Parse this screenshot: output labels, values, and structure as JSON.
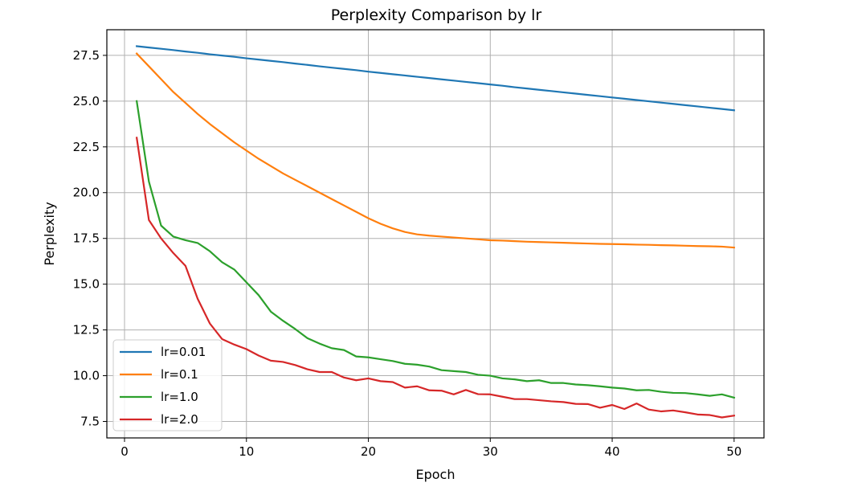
{
  "chart_data": {
    "type": "line",
    "title": "Perplexity Comparison by lr",
    "xlabel": "Epoch",
    "ylabel": "Perplexity",
    "xlim": [
      -1.45,
      52.45
    ],
    "ylim": [
      6.6,
      28.9
    ],
    "xticks": [
      0,
      10,
      20,
      30,
      40,
      50
    ],
    "yticks": [
      7.5,
      10.0,
      12.5,
      15.0,
      17.5,
      20.0,
      22.5,
      25.0,
      27.5
    ],
    "ytick_labels": [
      "7.5",
      "10.0",
      "12.5",
      "15.0",
      "17.5",
      "20.0",
      "22.5",
      "25.0",
      "27.5"
    ],
    "grid": true,
    "legend_position": "lower-left",
    "x": [
      1,
      2,
      3,
      4,
      5,
      6,
      7,
      8,
      9,
      10,
      11,
      12,
      13,
      14,
      15,
      16,
      17,
      18,
      19,
      20,
      21,
      22,
      23,
      24,
      25,
      26,
      27,
      28,
      29,
      30,
      31,
      32,
      33,
      34,
      35,
      36,
      37,
      38,
      39,
      40,
      41,
      42,
      43,
      44,
      45,
      46,
      47,
      48,
      49,
      50
    ],
    "series": [
      {
        "name": "lr=0.01",
        "color": "#1f77b4",
        "values": [
          28.0,
          27.93,
          27.86,
          27.79,
          27.71,
          27.64,
          27.56,
          27.49,
          27.42,
          27.34,
          27.27,
          27.2,
          27.13,
          27.05,
          26.98,
          26.9,
          26.83,
          26.76,
          26.69,
          26.61,
          26.54,
          26.47,
          26.4,
          26.33,
          26.26,
          26.19,
          26.12,
          26.05,
          25.98,
          25.91,
          25.84,
          25.76,
          25.69,
          25.62,
          25.55,
          25.48,
          25.41,
          25.34,
          25.27,
          25.2,
          25.13,
          25.06,
          24.99,
          24.92,
          24.85,
          24.78,
          24.71,
          24.64,
          24.57,
          24.5
        ]
      },
      {
        "name": "lr=0.1",
        "color": "#ff7f0e",
        "values": [
          27.6,
          26.9,
          26.2,
          25.5,
          24.9,
          24.3,
          23.75,
          23.25,
          22.75,
          22.3,
          21.85,
          21.45,
          21.05,
          20.7,
          20.35,
          20.0,
          19.65,
          19.3,
          18.95,
          18.6,
          18.3,
          18.05,
          17.85,
          17.72,
          17.65,
          17.6,
          17.55,
          17.5,
          17.45,
          17.4,
          17.38,
          17.35,
          17.32,
          17.3,
          17.28,
          17.26,
          17.24,
          17.22,
          17.2,
          17.19,
          17.18,
          17.16,
          17.15,
          17.13,
          17.12,
          17.1,
          17.08,
          17.07,
          17.05,
          17.0
        ]
      },
      {
        "name": "lr=1.0",
        "color": "#2ca02c",
        "values": [
          25.0,
          20.6,
          18.2,
          17.6,
          17.4,
          17.25,
          16.8,
          16.2,
          15.8,
          15.1,
          14.4,
          13.5,
          13.0,
          12.55,
          12.05,
          11.75,
          11.5,
          11.4,
          11.05,
          11.0,
          10.9,
          10.8,
          10.65,
          10.6,
          10.5,
          10.3,
          10.25,
          10.2,
          10.05,
          10.0,
          9.85,
          9.8,
          9.7,
          9.75,
          9.6,
          9.6,
          9.52,
          9.48,
          9.42,
          9.35,
          9.3,
          9.2,
          9.22,
          9.12,
          9.06,
          9.05,
          8.98,
          8.9,
          8.98,
          8.8
        ]
      },
      {
        "name": "lr=2.0",
        "color": "#d62728",
        "values": [
          23.0,
          18.5,
          17.5,
          16.7,
          16.0,
          14.2,
          12.85,
          12.0,
          11.7,
          11.45,
          11.1,
          10.82,
          10.75,
          10.58,
          10.35,
          10.2,
          10.2,
          9.9,
          9.75,
          9.85,
          9.7,
          9.65,
          9.35,
          9.42,
          9.2,
          9.18,
          8.98,
          9.22,
          8.99,
          8.98,
          8.85,
          8.72,
          8.72,
          8.66,
          8.6,
          8.56,
          8.46,
          8.45,
          8.25,
          8.4,
          8.18,
          8.48,
          8.15,
          8.05,
          8.1,
          8.0,
          7.88,
          7.85,
          7.72,
          7.82
        ]
      }
    ]
  }
}
